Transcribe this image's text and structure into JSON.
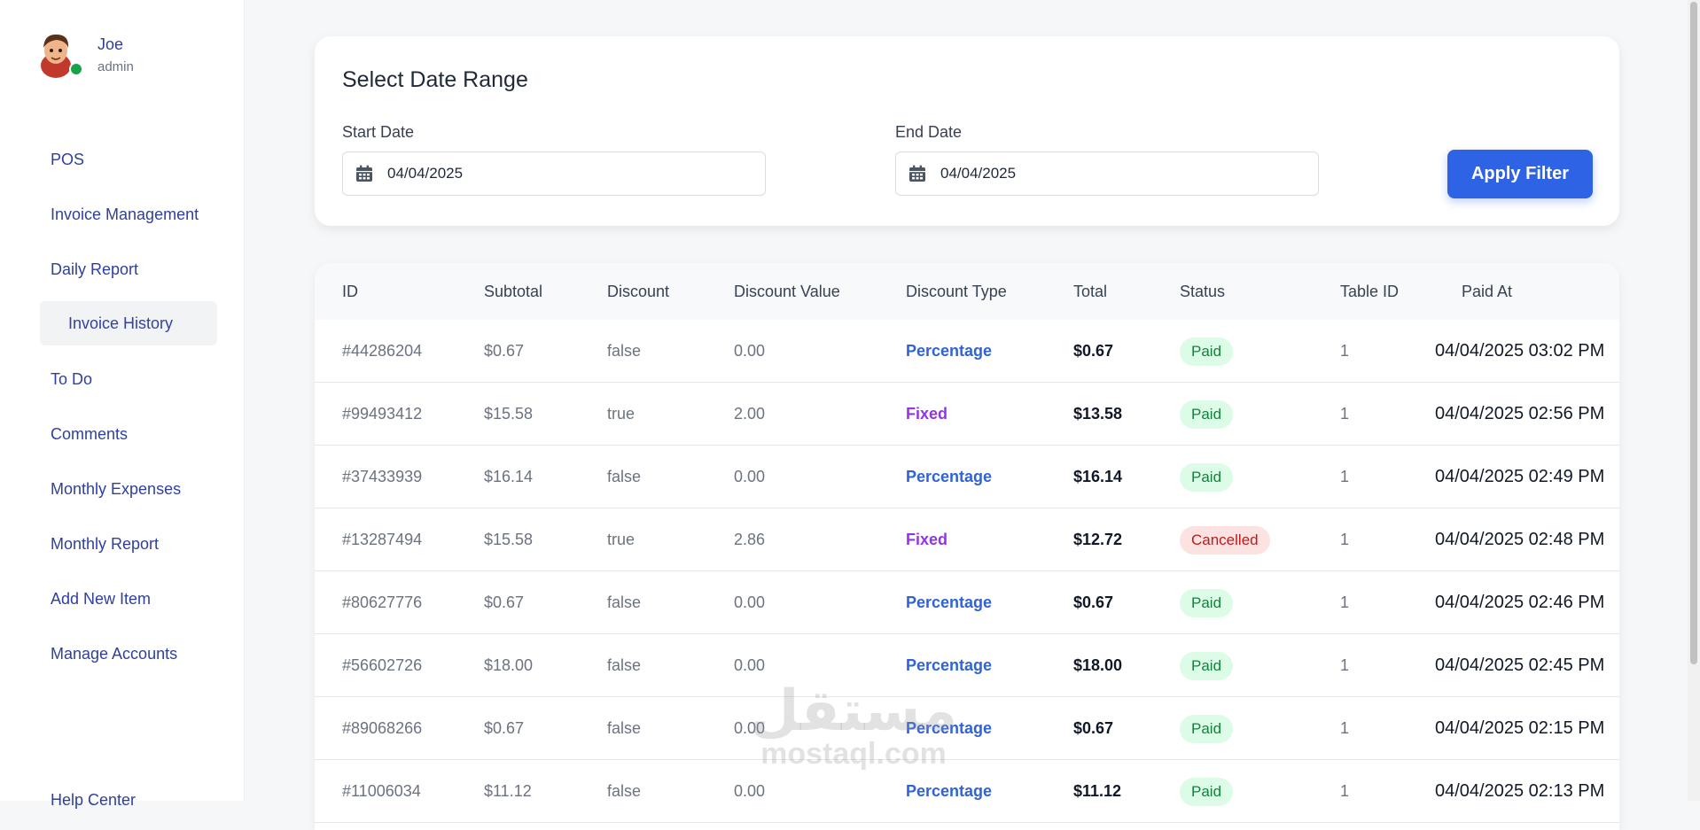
{
  "user": {
    "name": "Joe",
    "role": "admin"
  },
  "sidebar": {
    "items": [
      {
        "label": "POS"
      },
      {
        "label": "Invoice Management"
      },
      {
        "label": "Daily Report"
      },
      {
        "label": "Invoice History"
      },
      {
        "label": "To Do"
      },
      {
        "label": "Comments"
      },
      {
        "label": "Monthly Expenses"
      },
      {
        "label": "Monthly Report"
      },
      {
        "label": "Add New Item"
      },
      {
        "label": "Manage Accounts"
      },
      {
        "label": "Help Center"
      }
    ]
  },
  "filter": {
    "title": "Select Date Range",
    "start_label": "Start Date",
    "start_value": "04/04/2025",
    "end_label": "End Date",
    "end_value": "04/04/2025",
    "apply_label": "Apply Filter"
  },
  "table": {
    "headers": [
      "ID",
      "Subtotal",
      "Discount",
      "Discount Value",
      "Discount Type",
      "Total",
      "Status",
      "Table ID",
      "Paid At"
    ],
    "rows": [
      {
        "id": "#44286204",
        "subtotal": "$0.67",
        "discount": "false",
        "discount_value": "0.00",
        "discount_type": "Percentage",
        "total": "$0.67",
        "status": "Paid",
        "table_id": "1",
        "paid_at": "04/04/2025 03:02 PM"
      },
      {
        "id": "#99493412",
        "subtotal": "$15.58",
        "discount": "true",
        "discount_value": "2.00",
        "discount_type": "Fixed",
        "total": "$13.58",
        "status": "Paid",
        "table_id": "1",
        "paid_at": "04/04/2025 02:56 PM"
      },
      {
        "id": "#37433939",
        "subtotal": "$16.14",
        "discount": "false",
        "discount_value": "0.00",
        "discount_type": "Percentage",
        "total": "$16.14",
        "status": "Paid",
        "table_id": "1",
        "paid_at": "04/04/2025 02:49 PM"
      },
      {
        "id": "#13287494",
        "subtotal": "$15.58",
        "discount": "true",
        "discount_value": "2.86",
        "discount_type": "Fixed",
        "total": "$12.72",
        "status": "Cancelled",
        "table_id": "1",
        "paid_at": "04/04/2025 02:48 PM"
      },
      {
        "id": "#80627776",
        "subtotal": "$0.67",
        "discount": "false",
        "discount_value": "0.00",
        "discount_type": "Percentage",
        "total": "$0.67",
        "status": "Paid",
        "table_id": "1",
        "paid_at": "04/04/2025 02:46 PM"
      },
      {
        "id": "#56602726",
        "subtotal": "$18.00",
        "discount": "false",
        "discount_value": "0.00",
        "discount_type": "Percentage",
        "total": "$18.00",
        "status": "Paid",
        "table_id": "1",
        "paid_at": "04/04/2025 02:45 PM"
      },
      {
        "id": "#89068266",
        "subtotal": "$0.67",
        "discount": "false",
        "discount_value": "0.00",
        "discount_type": "Percentage",
        "total": "$0.67",
        "status": "Paid",
        "table_id": "1",
        "paid_at": "04/04/2025 02:15 PM"
      },
      {
        "id": "#11006034",
        "subtotal": "$11.12",
        "discount": "false",
        "discount_value": "0.00",
        "discount_type": "Percentage",
        "total": "$11.12",
        "status": "Paid",
        "table_id": "1",
        "paid_at": "04/04/2025 02:13 PM"
      }
    ]
  },
  "watermark": {
    "arabic": "مستقل",
    "latin": "mostaql.com"
  },
  "colors": {
    "accent": "#2f63e6",
    "nav_text": "#2f3fa0",
    "percentage": "#2f63d6",
    "fixed": "#9333ea",
    "paid_bg": "#dcfce7",
    "cancelled_bg": "#fde2e2"
  }
}
